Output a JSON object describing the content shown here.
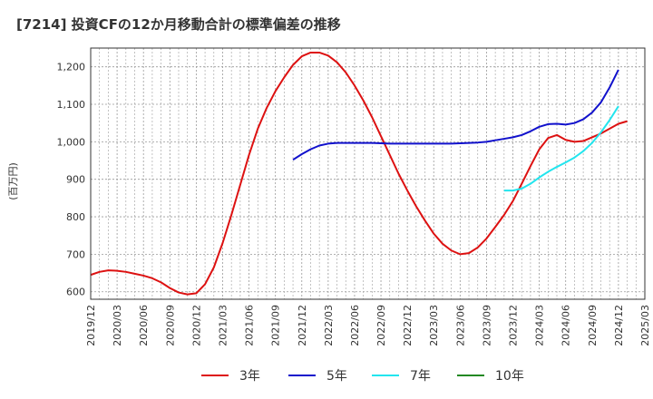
{
  "chart_data": {
    "type": "line",
    "title": "[7214]  投資CFの12か月移動合計の標準偏差の推移",
    "ylabel": "(百万円)",
    "xlabel": "",
    "ylim": [
      580,
      1250
    ],
    "yticks": [
      600,
      700,
      800,
      900,
      1000,
      1100,
      1200
    ],
    "ytick_labels": [
      "600",
      "700",
      "800",
      "900",
      "1,000",
      "1,100",
      "1,200"
    ],
    "xlim": [
      "2019-12",
      "2025-03"
    ],
    "xtick_labels": [
      "2019/12",
      "2020/03",
      "2020/06",
      "2020/09",
      "2020/12",
      "2021/03",
      "2021/06",
      "2021/09",
      "2021/12",
      "2022/03",
      "2022/06",
      "2022/09",
      "2022/12",
      "2023/03",
      "2023/06",
      "2023/09",
      "2023/12",
      "2024/03",
      "2024/06",
      "2024/09",
      "2024/12",
      "2025/03"
    ],
    "grid": true,
    "legend_position": "bottom",
    "series": [
      {
        "name": "3年",
        "color": "#dd1111",
        "points": [
          [
            "2019-12",
            645
          ],
          [
            "2020-01",
            653
          ],
          [
            "2020-02",
            657
          ],
          [
            "2020-03",
            656
          ],
          [
            "2020-04",
            653
          ],
          [
            "2020-05",
            648
          ],
          [
            "2020-06",
            643
          ],
          [
            "2020-07",
            636
          ],
          [
            "2020-08",
            625
          ],
          [
            "2020-09",
            610
          ],
          [
            "2020-10",
            598
          ],
          [
            "2020-11",
            593
          ],
          [
            "2020-12",
            596
          ],
          [
            "2021-01",
            620
          ],
          [
            "2021-02",
            665
          ],
          [
            "2021-03",
            730
          ],
          [
            "2021-04",
            805
          ],
          [
            "2021-05",
            885
          ],
          [
            "2021-06",
            965
          ],
          [
            "2021-07",
            1035
          ],
          [
            "2021-08",
            1090
          ],
          [
            "2021-09",
            1135
          ],
          [
            "2021-10",
            1172
          ],
          [
            "2021-11",
            1205
          ],
          [
            "2021-12",
            1228
          ],
          [
            "2022-01",
            1238
          ],
          [
            "2022-02",
            1238
          ],
          [
            "2022-03",
            1230
          ],
          [
            "2022-04",
            1212
          ],
          [
            "2022-05",
            1185
          ],
          [
            "2022-06",
            1150
          ],
          [
            "2022-07",
            1110
          ],
          [
            "2022-08",
            1065
          ],
          [
            "2022-09",
            1015
          ],
          [
            "2022-10",
            965
          ],
          [
            "2022-11",
            915
          ],
          [
            "2022-12",
            870
          ],
          [
            "2023-01",
            828
          ],
          [
            "2023-02",
            790
          ],
          [
            "2023-03",
            755
          ],
          [
            "2023-04",
            728
          ],
          [
            "2023-05",
            710
          ],
          [
            "2023-06",
            700
          ],
          [
            "2023-07",
            703
          ],
          [
            "2023-08",
            718
          ],
          [
            "2023-09",
            742
          ],
          [
            "2023-10",
            773
          ],
          [
            "2023-11",
            805
          ],
          [
            "2023-12",
            842
          ],
          [
            "2024-01",
            888
          ],
          [
            "2024-02",
            935
          ],
          [
            "2024-03",
            980
          ],
          [
            "2024-04",
            1010
          ],
          [
            "2024-05",
            1018
          ],
          [
            "2024-06",
            1005
          ],
          [
            "2024-07",
            1000
          ],
          [
            "2024-08",
            1002
          ],
          [
            "2024-09",
            1012
          ],
          [
            "2024-10",
            1022
          ],
          [
            "2024-11",
            1035
          ],
          [
            "2024-12",
            1048
          ],
          [
            "2025-01",
            1055
          ]
        ]
      },
      {
        "name": "5年",
        "color": "#1111cc",
        "points": [
          [
            "2021-11",
            952
          ],
          [
            "2021-12",
            967
          ],
          [
            "2022-01",
            980
          ],
          [
            "2022-02",
            990
          ],
          [
            "2022-03",
            995
          ],
          [
            "2022-04",
            997
          ],
          [
            "2022-05",
            997
          ],
          [
            "2022-06",
            997
          ],
          [
            "2022-07",
            997
          ],
          [
            "2022-08",
            997
          ],
          [
            "2022-09",
            996
          ],
          [
            "2022-10",
            995
          ],
          [
            "2022-11",
            995
          ],
          [
            "2022-12",
            995
          ],
          [
            "2023-01",
            995
          ],
          [
            "2023-02",
            995
          ],
          [
            "2023-03",
            995
          ],
          [
            "2023-04",
            995
          ],
          [
            "2023-05",
            995
          ],
          [
            "2023-06",
            996
          ],
          [
            "2023-07",
            997
          ],
          [
            "2023-08",
            998
          ],
          [
            "2023-09",
            1000
          ],
          [
            "2023-10",
            1004
          ],
          [
            "2023-11",
            1008
          ],
          [
            "2023-12",
            1012
          ],
          [
            "2024-01",
            1018
          ],
          [
            "2024-02",
            1028
          ],
          [
            "2024-03",
            1040
          ],
          [
            "2024-04",
            1047
          ],
          [
            "2024-05",
            1048
          ],
          [
            "2024-06",
            1046
          ],
          [
            "2024-07",
            1050
          ],
          [
            "2024-08",
            1060
          ],
          [
            "2024-09",
            1078
          ],
          [
            "2024-10",
            1105
          ],
          [
            "2024-11",
            1145
          ],
          [
            "2024-12",
            1192
          ]
        ]
      },
      {
        "name": "7年",
        "color": "#22e5ee",
        "points": [
          [
            "2023-11",
            870
          ],
          [
            "2023-12",
            870
          ],
          [
            "2024-01",
            875
          ],
          [
            "2024-02",
            888
          ],
          [
            "2024-03",
            905
          ],
          [
            "2024-04",
            920
          ],
          [
            "2024-05",
            933
          ],
          [
            "2024-06",
            945
          ],
          [
            "2024-07",
            958
          ],
          [
            "2024-08",
            975
          ],
          [
            "2024-09",
            997
          ],
          [
            "2024-10",
            1025
          ],
          [
            "2024-11",
            1058
          ],
          [
            "2024-12",
            1095
          ]
        ]
      },
      {
        "name": "10年",
        "color": "#228822",
        "points": []
      }
    ]
  }
}
